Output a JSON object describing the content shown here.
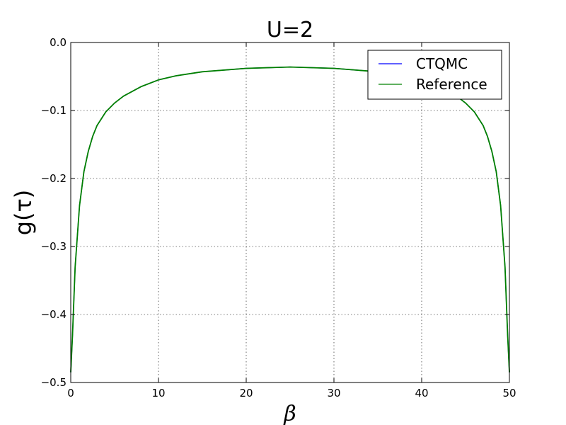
{
  "chart_data": {
    "type": "line",
    "title": "U=2",
    "xlabel": "β",
    "ylabel": "g(τ)",
    "xlim": [
      0,
      50
    ],
    "ylim": [
      -0.5,
      0.0
    ],
    "xticks": [
      0,
      10,
      20,
      30,
      40,
      50
    ],
    "xtick_labels": [
      "0",
      "10",
      "20",
      "30",
      "40",
      "50"
    ],
    "yticks": [
      0.0,
      -0.1,
      -0.2,
      -0.3,
      -0.4,
      -0.5
    ],
    "ytick_labels": [
      "0.0",
      "−0.1",
      "−0.2",
      "−0.3",
      "−0.4",
      "−0.5"
    ],
    "grid": true,
    "legend_position": "top-right",
    "series": [
      {
        "name": "CTQMC",
        "color": "#0000ff",
        "x": [
          0,
          0.2,
          0.5,
          1,
          1.5,
          2,
          2.5,
          3,
          4,
          5,
          6,
          8,
          10,
          12,
          15,
          20,
          25,
          30,
          35,
          38,
          40,
          42,
          44,
          45,
          46,
          47,
          47.5,
          48,
          48.5,
          49,
          49.5,
          49.8,
          50
        ],
        "y": [
          -0.485,
          -0.43,
          -0.33,
          -0.24,
          -0.19,
          -0.16,
          -0.138,
          -0.122,
          -0.102,
          -0.089,
          -0.079,
          -0.065,
          -0.055,
          -0.049,
          -0.043,
          -0.038,
          -0.036,
          -0.038,
          -0.043,
          -0.049,
          -0.055,
          -0.065,
          -0.079,
          -0.089,
          -0.102,
          -0.122,
          -0.138,
          -0.16,
          -0.19,
          -0.24,
          -0.33,
          -0.43,
          -0.485
        ]
      },
      {
        "name": "Reference",
        "color": "#008000",
        "x": [
          0,
          0.2,
          0.5,
          1,
          1.5,
          2,
          2.5,
          3,
          4,
          5,
          6,
          8,
          10,
          12,
          15,
          20,
          25,
          30,
          35,
          38,
          40,
          42,
          44,
          45,
          46,
          47,
          47.5,
          48,
          48.5,
          49,
          49.5,
          49.8,
          50
        ],
        "y": [
          -0.485,
          -0.43,
          -0.33,
          -0.24,
          -0.19,
          -0.16,
          -0.138,
          -0.122,
          -0.102,
          -0.089,
          -0.079,
          -0.065,
          -0.055,
          -0.049,
          -0.043,
          -0.038,
          -0.036,
          -0.038,
          -0.043,
          -0.049,
          -0.055,
          -0.065,
          -0.079,
          -0.089,
          -0.102,
          -0.122,
          -0.138,
          -0.16,
          -0.19,
          -0.24,
          -0.33,
          -0.43,
          -0.485
        ]
      }
    ]
  }
}
